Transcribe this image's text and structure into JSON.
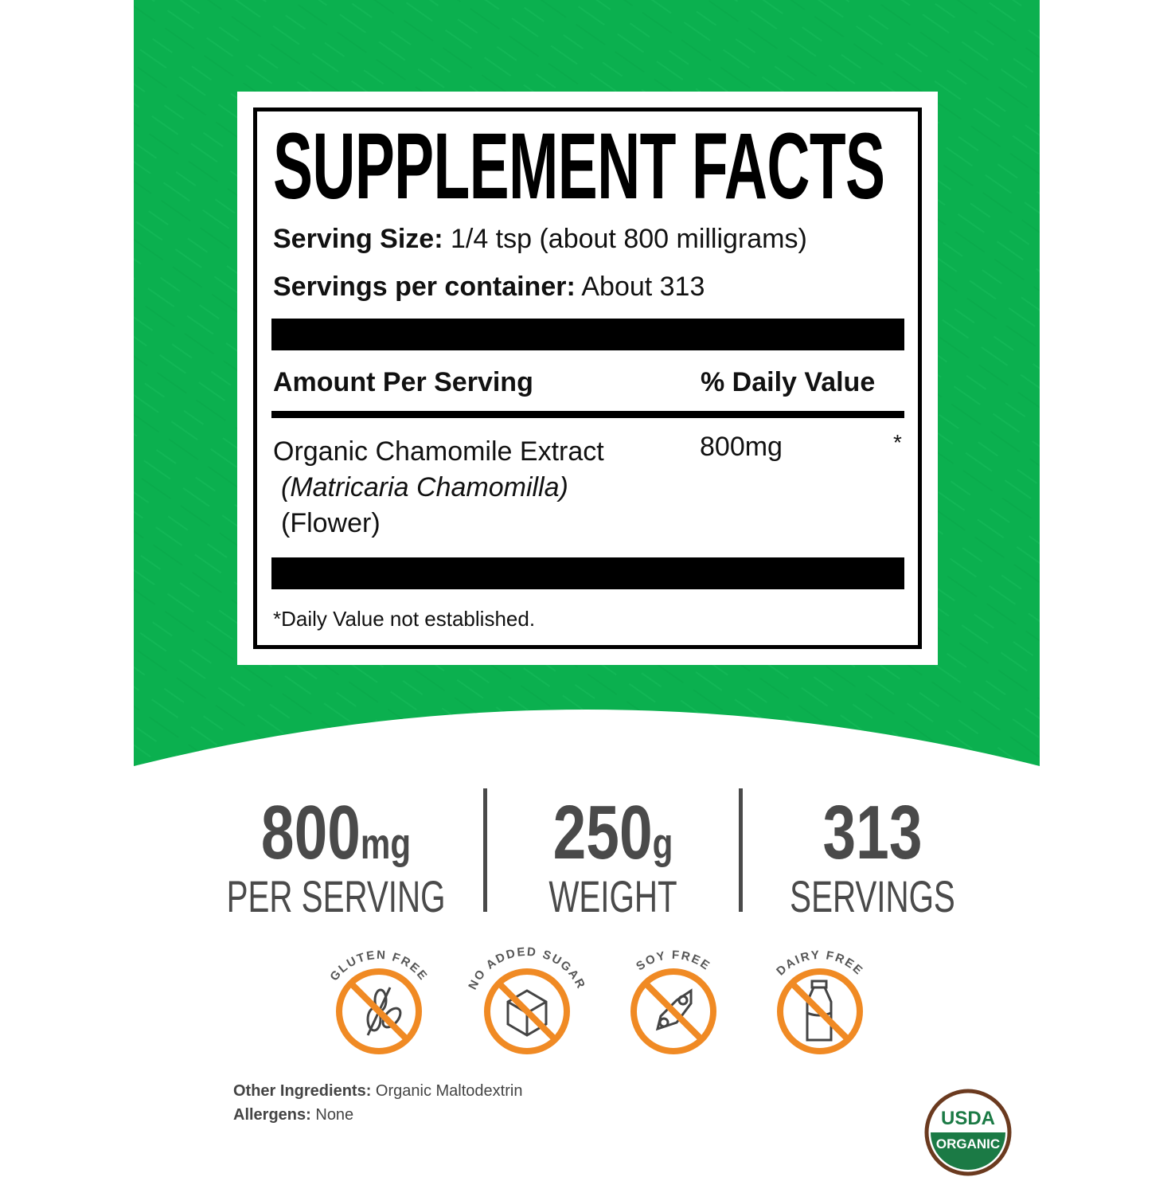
{
  "colors": {
    "green": "#0bb04f",
    "orange": "#f08a24",
    "text_grey": "#4a4a4a",
    "usda_green": "#1b7a45",
    "usda_brown": "#6b3a1f"
  },
  "label": {
    "title": "SUPPLEMENT FACTS",
    "serving_size_label": "Serving Size:",
    "serving_size_value": " 1/4 tsp (about 800 milligrams)",
    "servings_label": "Servings per container:",
    "servings_value": " About 313",
    "amount_header": "Amount Per Serving",
    "dv_header": "% Daily Value",
    "ingredient_name": "Organic Chamomile Extract",
    "ingredient_latin": "(Matricaria Chamomilla)",
    "ingredient_part": "(Flower)",
    "ingredient_amount": "800mg",
    "ingredient_dv": "*",
    "footnote": "*Daily Value not established."
  },
  "stats": [
    {
      "value": "800",
      "unit": "mg",
      "label": "PER SERVING"
    },
    {
      "value": "250",
      "unit": "g",
      "label": "WEIGHT"
    },
    {
      "value": "313",
      "unit": "",
      "label": "SERVINGS"
    }
  ],
  "badges": [
    {
      "text": "GLUTEN FREE",
      "icon": "wheat-icon"
    },
    {
      "text": "NO ADDED SUGAR",
      "icon": "sugar-cube-icon"
    },
    {
      "text": "SOY FREE",
      "icon": "soybean-icon"
    },
    {
      "text": "DAIRY FREE",
      "icon": "milk-bottle-icon"
    }
  ],
  "other_ingredients_label": "Other Ingredients:",
  "other_ingredients_value": " Organic Maltodextrin",
  "allergens_label": "Allergens:",
  "allergens_value": " None",
  "usda": {
    "top": "USDA",
    "bottom": "ORGANIC"
  }
}
